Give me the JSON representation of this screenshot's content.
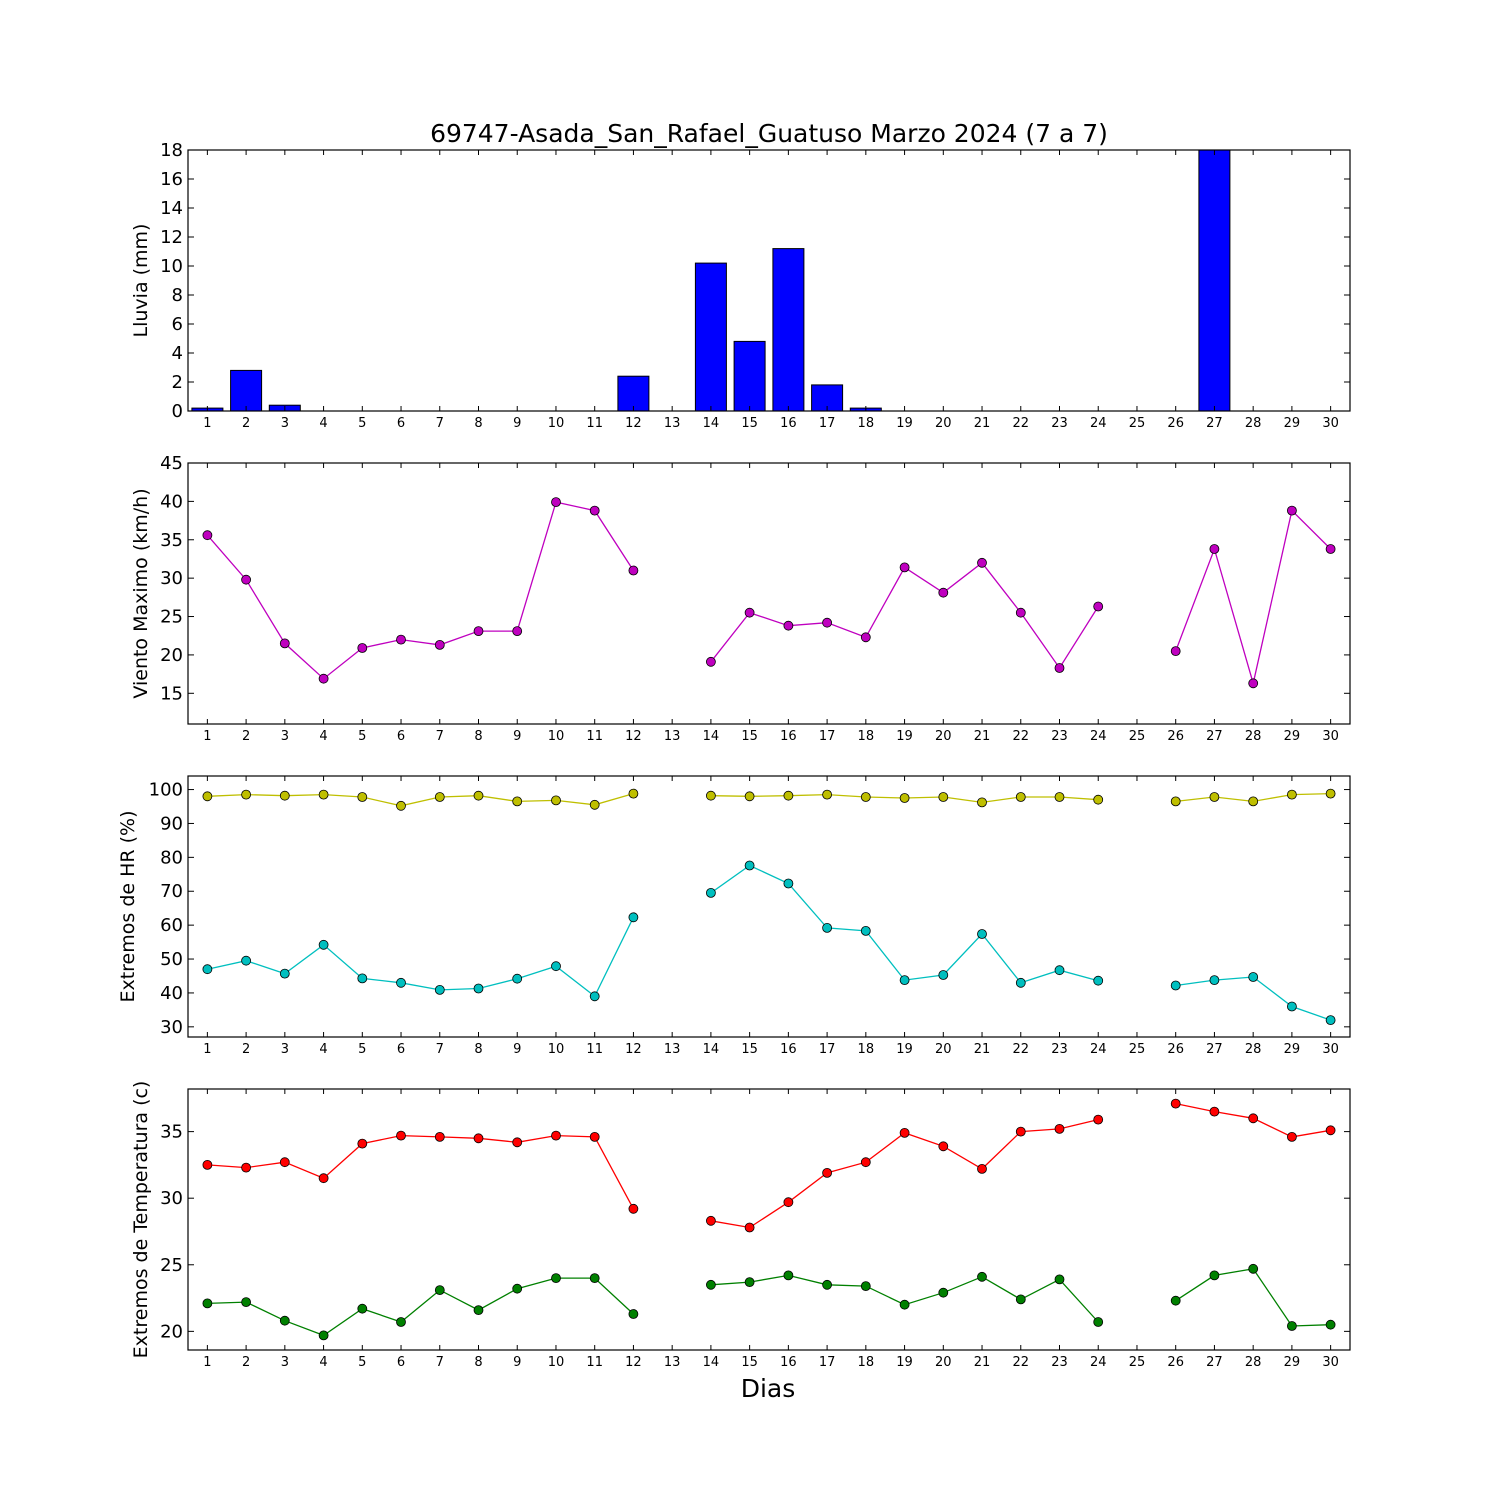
{
  "chart_data": {
    "title": "69747-Asada_San_Rafael_Guatuso Marzo 2024  (7 a 7)",
    "xlabel": "Dias",
    "x": [
      1,
      2,
      3,
      4,
      5,
      6,
      7,
      8,
      9,
      10,
      11,
      12,
      13,
      14,
      15,
      16,
      17,
      18,
      19,
      20,
      21,
      22,
      23,
      24,
      25,
      26,
      27,
      28,
      29,
      30
    ],
    "panels": [
      {
        "type": "bar",
        "ylabel": "Lluvia (mm)",
        "ylim": [
          0,
          18
        ],
        "yticks": [
          0,
          2,
          4,
          6,
          8,
          10,
          12,
          14,
          16,
          18
        ],
        "series": [
          {
            "color": "#0000ff",
            "values": [
              0.2,
              2.8,
              0.4,
              0,
              0,
              0,
              0,
              0,
              0,
              0,
              0,
              2.4,
              null,
              10.2,
              4.8,
              11.2,
              1.8,
              0.2,
              0,
              0,
              0,
              0,
              0,
              0,
              null,
              null,
              18,
              0,
              0,
              0
            ]
          }
        ]
      },
      {
        "type": "line",
        "ylabel": "Viento Maximo (km/h)",
        "ylim": [
          11,
          45
        ],
        "yticks": [
          15,
          20,
          25,
          30,
          35,
          40,
          45
        ],
        "series": [
          {
            "color": "#bf00bf",
            "values": [
              35.6,
              29.8,
              21.5,
              16.9,
              20.9,
              22.0,
              21.3,
              23.1,
              23.1,
              39.9,
              38.8,
              31.0,
              null,
              19.1,
              25.5,
              23.8,
              24.2,
              22.3,
              31.4,
              28.1,
              32.0,
              25.5,
              18.3,
              26.3,
              null,
              20.5,
              33.8,
              16.3,
              38.8,
              33.8
            ]
          }
        ]
      },
      {
        "type": "line",
        "ylabel": "Extremos de HR (%)",
        "ylim": [
          27,
          104
        ],
        "yticks": [
          30,
          40,
          50,
          60,
          70,
          80,
          90,
          100
        ],
        "series": [
          {
            "color": "#bfbf00",
            "values": [
              98,
              98.5,
              98.2,
              98.5,
              97.8,
              95.2,
              97.8,
              98.2,
              96.5,
              96.8,
              95.5,
              98.8,
              null,
              98.2,
              98.0,
              98.2,
              98.5,
              97.8,
              97.5,
              97.8,
              96.2,
              97.8,
              97.8,
              97.0,
              null,
              96.5,
              97.8,
              96.5,
              98.5,
              98.8
            ]
          },
          {
            "color": "#00bfbf",
            "values": [
              47.0,
              49.5,
              45.7,
              54.2,
              44.3,
              43.0,
              40.9,
              41.3,
              44.2,
              47.9,
              39.0,
              62.3,
              null,
              69.5,
              77.6,
              72.3,
              59.2,
              58.3,
              43.8,
              45.3,
              57.4,
              43.0,
              46.7,
              43.6,
              null,
              42.2,
              43.8,
              44.7,
              36.0,
              32.0
            ]
          }
        ]
      },
      {
        "type": "line",
        "ylabel": "Extremos de Temperatura (c)",
        "ylim": [
          18.6,
          38.2
        ],
        "yticks": [
          20,
          25,
          30,
          35
        ],
        "series": [
          {
            "color": "#ff0000",
            "values": [
              32.5,
              32.3,
              32.7,
              31.5,
              34.1,
              34.7,
              34.6,
              34.5,
              34.2,
              34.7,
              34.6,
              29.2,
              null,
              28.3,
              27.8,
              29.7,
              31.9,
              32.7,
              34.9,
              33.9,
              32.2,
              35.0,
              35.2,
              35.9,
              null,
              37.1,
              36.5,
              36.0,
              34.6,
              35.1
            ]
          },
          {
            "color": "#008000",
            "values": [
              22.1,
              22.2,
              20.8,
              19.7,
              21.7,
              20.7,
              23.1,
              21.6,
              23.2,
              24.0,
              24.0,
              21.3,
              null,
              23.5,
              23.7,
              24.2,
              23.5,
              23.4,
              22.0,
              22.9,
              24.1,
              22.4,
              23.9,
              20.7,
              null,
              22.3,
              24.2,
              24.7,
              20.4,
              20.5
            ]
          }
        ]
      }
    ]
  }
}
